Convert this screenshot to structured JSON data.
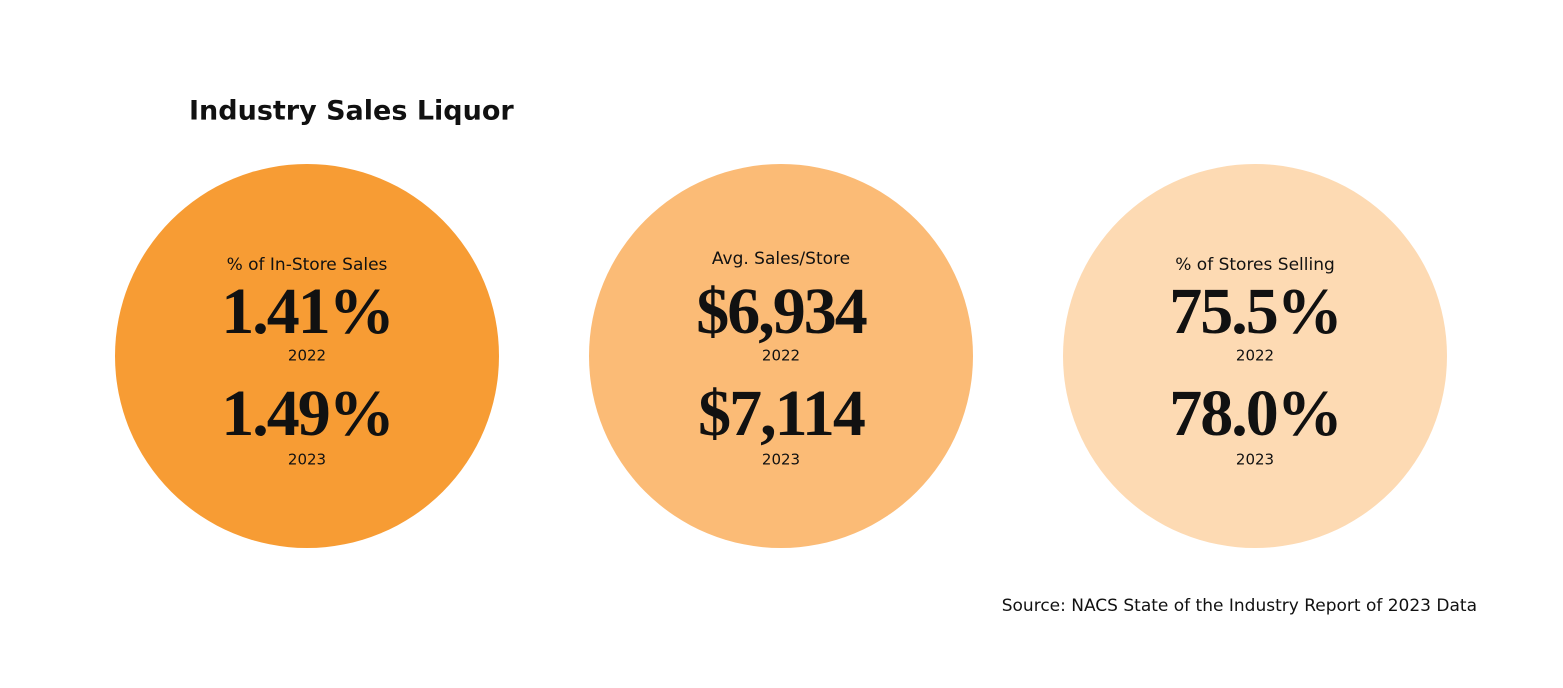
{
  "header": {
    "title": "Industry Sales Liquor"
  },
  "panels": [
    {
      "label": "% of In-Store Sales",
      "color": "#f79c34",
      "entries": [
        {
          "value": "1.41%",
          "year": "2022"
        },
        {
          "value": "1.49%",
          "year": "2023"
        }
      ]
    },
    {
      "label": "Avg. Sales/Store",
      "color": "#fbbb76",
      "entries": [
        {
          "value": "$6,934",
          "year": "2022"
        },
        {
          "value": "$7,114",
          "year": "2023"
        }
      ]
    },
    {
      "label": "% of Stores Selling",
      "color": "#fddab3",
      "entries": [
        {
          "value": "75.5%",
          "year": "2022"
        },
        {
          "value": "78.0%",
          "year": "2023"
        }
      ]
    }
  ],
  "footer": {
    "source": "Source: NACS State of the Industry Report of 2023 Data"
  }
}
